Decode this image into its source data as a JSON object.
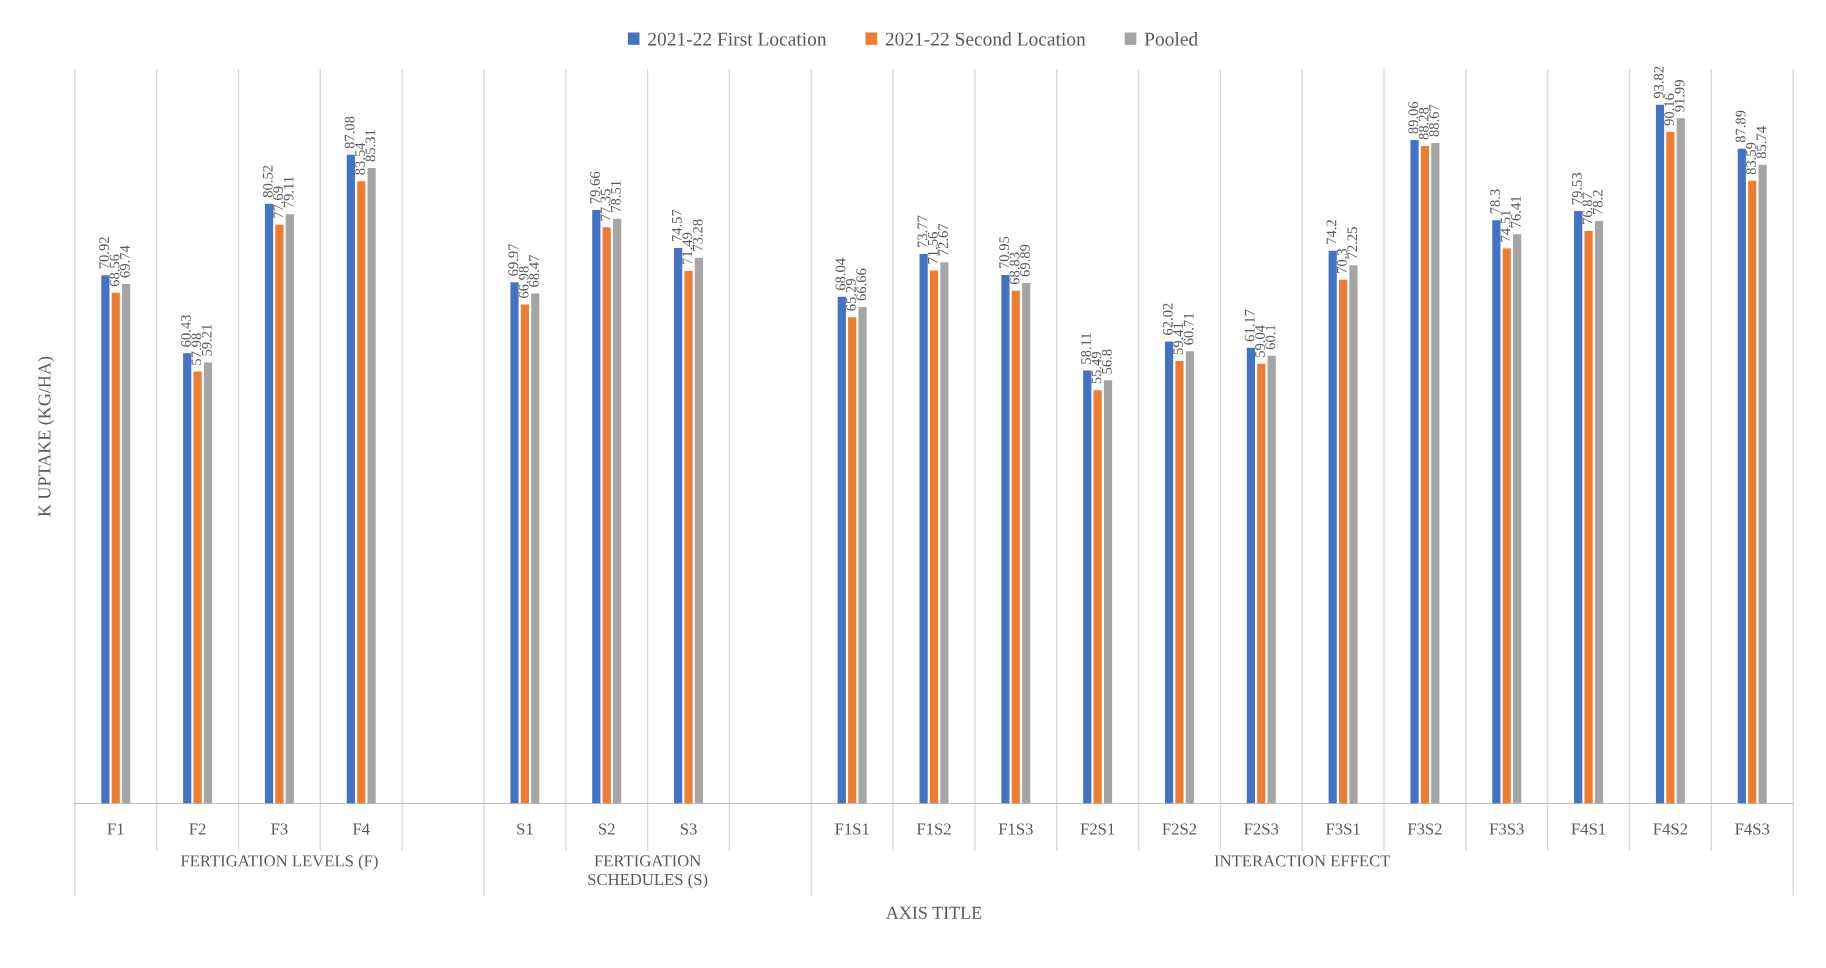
{
  "chart_data": {
    "type": "bar",
    "xlabel": "AXIS TITLE",
    "ylabel": "K UPTAKE (KG/HA)",
    "categories": [
      "F1",
      "F2",
      "F3",
      "F4",
      null,
      "S1",
      "S2",
      "S3",
      null,
      "F1S1",
      "F1S2",
      "F1S3",
      "F2S1",
      "F2S2",
      "F2S3",
      "F3S1",
      "F3S2",
      "F3S3",
      "F4S1",
      "F4S2",
      "F4S3"
    ],
    "annotations": [
      "FERTIGATION LEVELS (F)",
      "FERTIGATION\nSCHEDULES (S)",
      "INTERACTION EFFECT"
    ],
    "series": [
      {
        "name": "2021-22 First Location",
        "color": "#4472c4",
        "values": [
          70.92,
          60.43,
          80.52,
          87.08,
          null,
          69.97,
          79.66,
          74.57,
          null,
          68.04,
          73.77,
          70.95,
          58.11,
          62.02,
          61.17,
          74.2,
          89.06,
          78.3,
          79.53,
          93.82,
          87.89
        ]
      },
      {
        "name": "2021-22 Second Location",
        "color": "#ed7d31",
        "values": [
          68.56,
          57.98,
          77.69,
          83.54,
          null,
          66.98,
          77.35,
          71.49,
          null,
          65.29,
          71.56,
          68.83,
          55.49,
          59.41,
          59.04,
          70.3,
          88.28,
          74.51,
          76.87,
          90.16,
          83.59
        ]
      },
      {
        "name": "Pooled",
        "color": "#a5a5a5",
        "values": [
          69.74,
          59.21,
          79.11,
          85.31,
          null,
          68.47,
          78.51,
          73.28,
          null,
          66.66,
          72.67,
          69.89,
          56.8,
          60.71,
          60.1,
          72.25,
          88.67,
          76.41,
          78.2,
          91.99,
          85.74
        ]
      }
    ],
    "data_labels": true,
    "grid": "x",
    "legend": "top"
  }
}
